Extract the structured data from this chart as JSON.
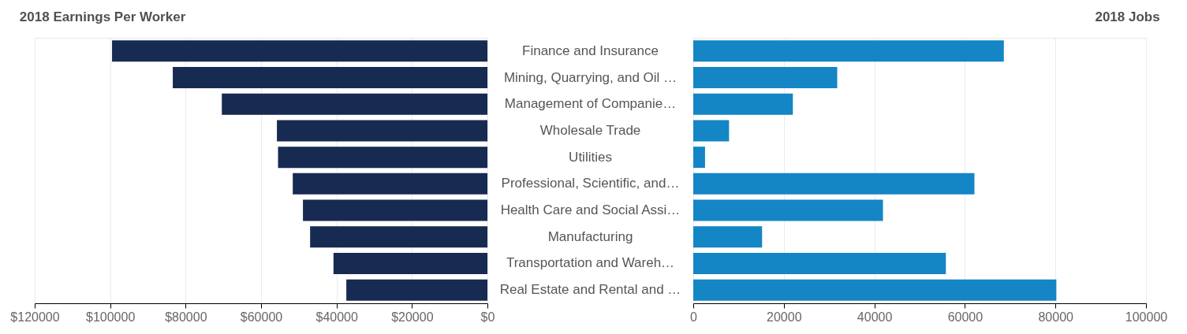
{
  "chart_data": [
    {
      "type": "bar",
      "orientation": "horizontal",
      "title": "2018 Earnings Per Worker",
      "categories": [
        "Finance and Insurance",
        "Mining, Quarrying, and Oil …",
        "Management of Companie…",
        "Wholesale Trade",
        "Utilities",
        "Professional, Scientific, and…",
        "Health Care and Social Assi…",
        "Manufacturing",
        "Transportation and Wareh…",
        "Real Estate and Rental and …"
      ],
      "values": [
        99500,
        83400,
        70400,
        55800,
        55500,
        51600,
        48900,
        47000,
        40800,
        37400
      ],
      "color": "#172a51",
      "xlim": [
        120000,
        0
      ],
      "xticks": [
        {
          "value": 120000,
          "label": "$120000"
        },
        {
          "value": 100000,
          "label": "$100000"
        },
        {
          "value": 80000,
          "label": "$80000"
        },
        {
          "value": 60000,
          "label": "$60000"
        },
        {
          "value": 40000,
          "label": "$40000"
        },
        {
          "value": 20000,
          "label": "$20000"
        },
        {
          "value": 0,
          "label": "$0"
        }
      ],
      "grid": "x"
    },
    {
      "type": "bar",
      "orientation": "horizontal",
      "title": "2018 Jobs",
      "categories": [
        "Finance and Insurance",
        "Mining, Quarrying, and Oil …",
        "Management of Companie…",
        "Wholesale Trade",
        "Utilities",
        "Professional, Scientific, and…",
        "Health Care and Social Assi…",
        "Manufacturing",
        "Transportation and Wareh…",
        "Real Estate and Rental and …"
      ],
      "values": [
        68600,
        31800,
        22000,
        7900,
        2600,
        62100,
        41900,
        15200,
        55800,
        80200
      ],
      "color": "#1485c5",
      "xlim": [
        0,
        100000
      ],
      "xticks": [
        0,
        20000,
        40000,
        60000,
        80000,
        100000
      ],
      "grid": "x",
      "tick_labels": "x"
    }
  ]
}
